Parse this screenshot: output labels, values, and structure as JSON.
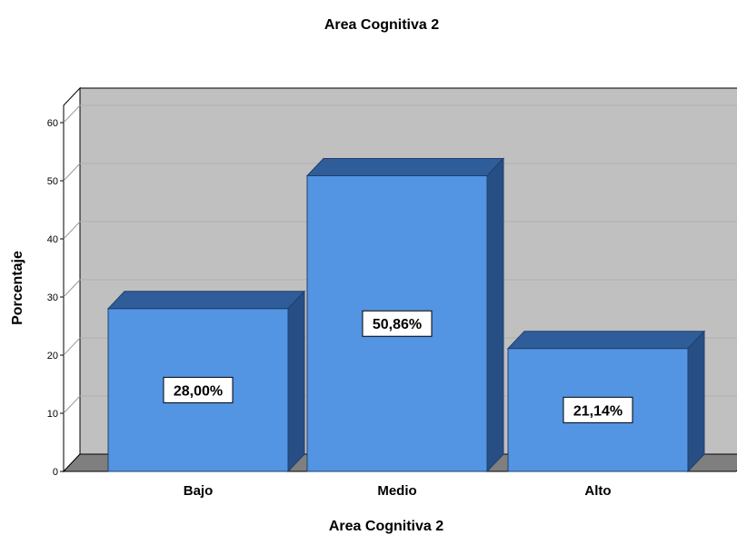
{
  "chart_data": {
    "type": "bar",
    "title": "Area Cognitiva 2",
    "xlabel": "Area Cognitiva 2",
    "ylabel": "Porcentaje",
    "categories": [
      "Bajo",
      "Medio",
      "Alto"
    ],
    "values": [
      28.0,
      50.86,
      21.14
    ],
    "data_labels": [
      "28,00%",
      "50,86%",
      "21,14%"
    ],
    "ylim": [
      0,
      60
    ],
    "yticks": [
      "0",
      "10",
      "20",
      "30",
      "40",
      "50",
      "60"
    ],
    "grid": true,
    "style": "3d",
    "colors": {
      "bar_front": "#5394e3",
      "bar_top": "#2f5d99",
      "bar_side": "#284f85",
      "plot_back": "#c0c0c0",
      "plot_floor": "#7f7f7f"
    }
  }
}
